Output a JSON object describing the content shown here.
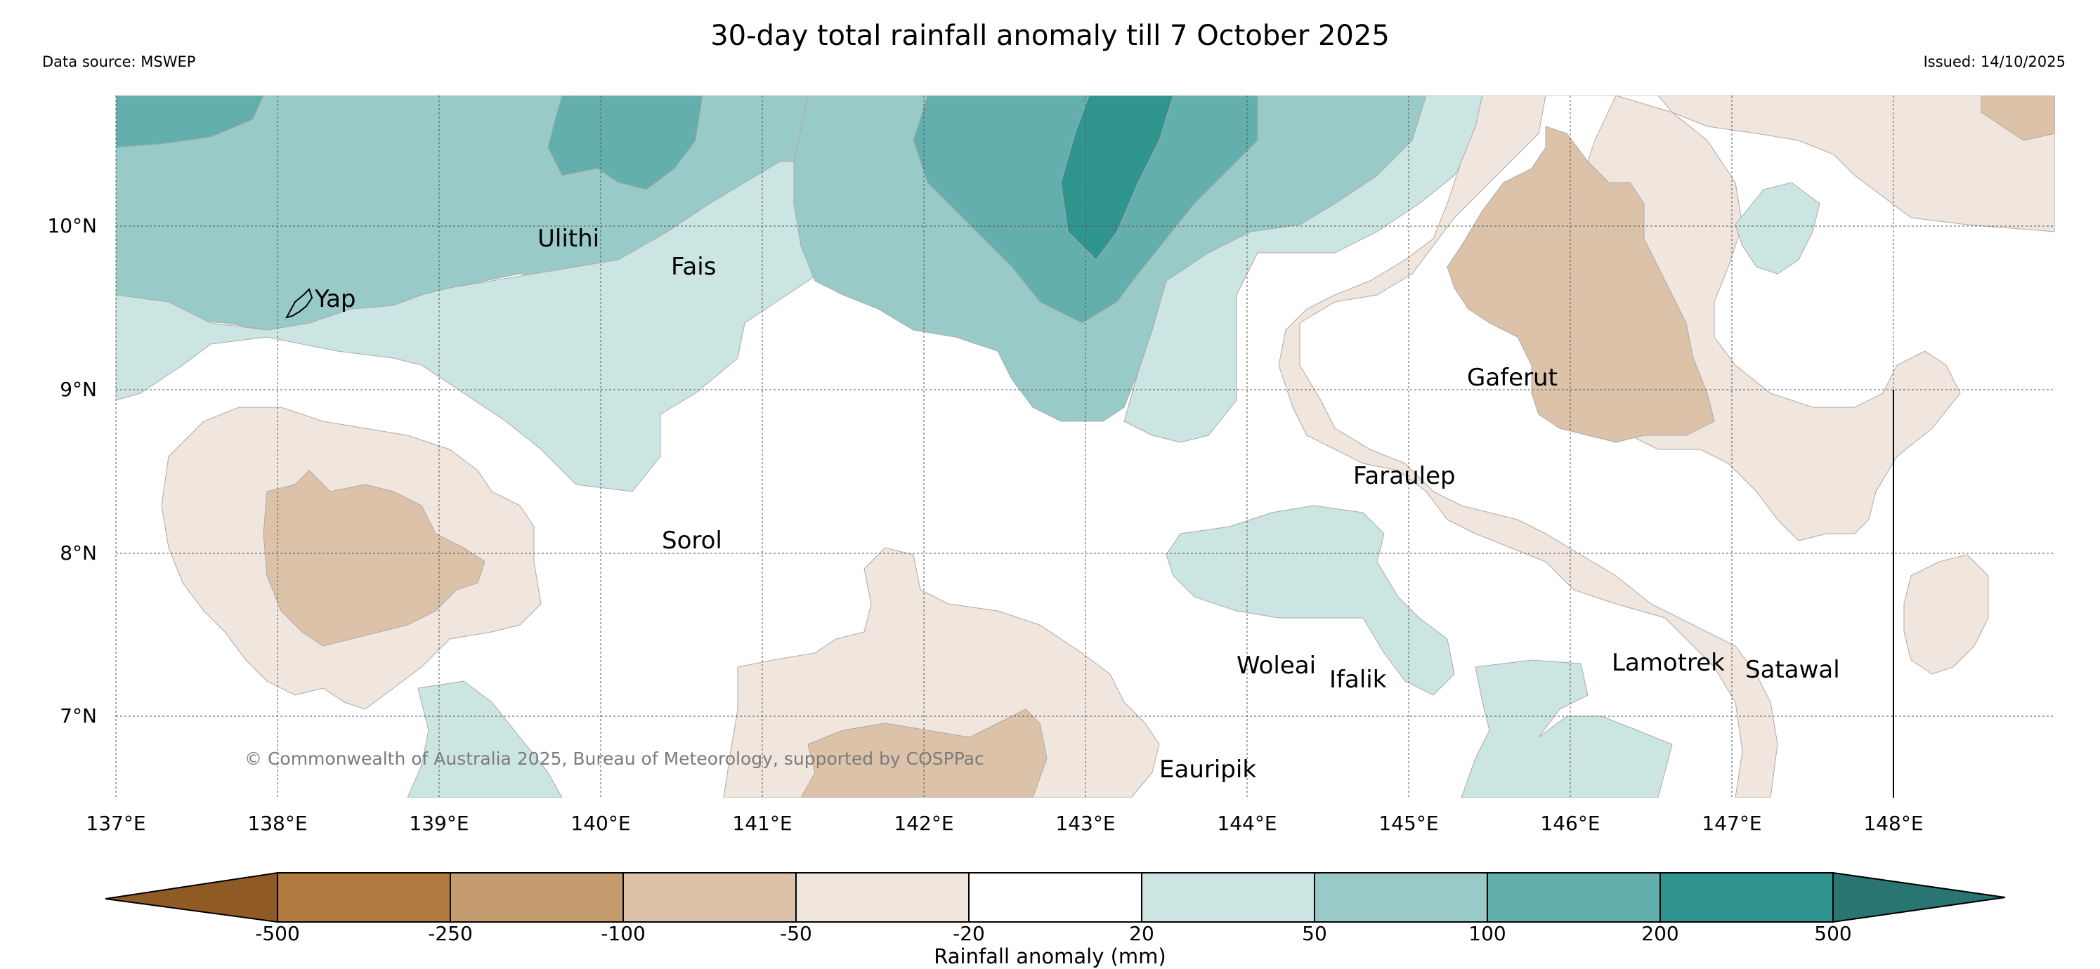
{
  "header": {
    "title": "30-day total rainfall anomaly till 7 October 2025",
    "data_source": "Data source: MSWEP",
    "issued": "Issued: 14/10/2025"
  },
  "map": {
    "latitude_labels": [
      "10°N",
      "9°N",
      "8°N",
      "7°N"
    ],
    "longitude_labels": [
      "137°E",
      "138°E",
      "139°E",
      "140°E",
      "141°E",
      "142°E",
      "143°E",
      "144°E",
      "145°E",
      "146°E",
      "147°E",
      "148°E"
    ],
    "places": {
      "yap": "Yap",
      "ulithi": "Ulithi",
      "fais": "Fais",
      "gaferut": "Gaferut",
      "faraulep": "Faraulep",
      "sorol": "Sorol",
      "woleai": "Woleai",
      "ifalik": "Ifalik",
      "lamotrek": "Lamotrek",
      "satawal": "Satawal",
      "eauripik": "Eauripik"
    },
    "copyright": "© Commonwealth of Australia 2025, Bureau of Meteorology, supported by COSPPac"
  },
  "legend": {
    "label": "Rainfall anomaly (mm)",
    "ticks": [
      "-500",
      "-250",
      "-100",
      "-50",
      "-20",
      "20",
      "50",
      "100",
      "200",
      "500"
    ],
    "colors": [
      "#8f5a24",
      "#b07a40",
      "#c59c70",
      "#dcc2a9",
      "#f1e6dd",
      "#ffffff",
      "#cbe5e3",
      "#98cac8",
      "#62afad",
      "#30958f",
      "#287571"
    ]
  }
}
